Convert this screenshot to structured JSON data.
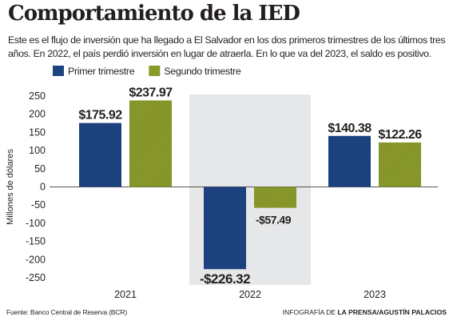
{
  "header": {
    "title": "Comportamiento de la IED",
    "subtitle": "Este es el flujo de inversión que ha llegado a El Salvador en los dos primeros trimestres de los últimos tres años. En 2022, el país perdió inversión en lugar de atraerla. En lo que va del 2023, el saldo es positivo."
  },
  "footer": {
    "source": "Fuente: Banco Central de Reserva (BCR)",
    "credit_prefix": "INFOGRAFÍA DE ",
    "credit_name": "LA PRENSA/AGUSTÍN PALACIOS"
  },
  "chart_data": {
    "type": "bar",
    "categories": [
      "2021",
      "2022",
      "2023"
    ],
    "series": [
      {
        "name": "Primer trimestre",
        "values": [
          175.92,
          -226.32,
          140.38
        ],
        "labels": [
          "$175.92",
          "-$226.32",
          "$140.38"
        ],
        "color": "#1d4381"
      },
      {
        "name": "Segundo trimestre",
        "values": [
          237.97,
          -57.49,
          122.26
        ],
        "labels": [
          "$237.97",
          "-$57.49",
          "$122.26"
        ],
        "color": "#8a9a2b"
      }
    ],
    "ylabel": "Millones de dólares",
    "ylim": [
      -250,
      250
    ],
    "yticks": [
      250,
      200,
      150,
      100,
      50,
      0,
      -50,
      -100,
      -150,
      -200,
      -250
    ],
    "highlighted_category": "2022",
    "highlight_color": "#e6e7e8",
    "gridlines": false,
    "legend_position": "top-left",
    "hatched_bars": true
  }
}
